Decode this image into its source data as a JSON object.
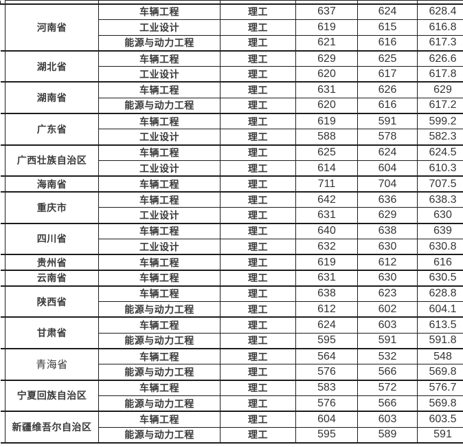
{
  "colors": {
    "province_bg": "#d1d1d1",
    "border": "#1c1c1c",
    "text": "#3a3a3a",
    "background": "#ffffff"
  },
  "table": {
    "groups": [
      {
        "province": "河南省",
        "rows": [
          {
            "major": "车辆工程",
            "category": "理工",
            "s1": "637",
            "s2": "624",
            "s3": "628.4"
          },
          {
            "major": "工业设计",
            "category": "理工",
            "s1": "619",
            "s2": "615",
            "s3": "616.8"
          },
          {
            "major": "能源与动力工程",
            "category": "理工",
            "s1": "621",
            "s2": "616",
            "s3": "617.3"
          }
        ]
      },
      {
        "province": "湖北省",
        "rows": [
          {
            "major": "车辆工程",
            "category": "理工",
            "s1": "629",
            "s2": "625",
            "s3": "626.6"
          },
          {
            "major": "工业设计",
            "category": "理工",
            "s1": "620",
            "s2": "617",
            "s3": "617.8"
          }
        ]
      },
      {
        "province": "湖南省",
        "rows": [
          {
            "major": "车辆工程",
            "category": "理工",
            "s1": "631",
            "s2": "626",
            "s3": "629"
          },
          {
            "major": "能源与动力工程",
            "category": "理工",
            "s1": "620",
            "s2": "616",
            "s3": "617.2"
          }
        ]
      },
      {
        "province": "广东省",
        "rows": [
          {
            "major": "车辆工程",
            "category": "理工",
            "s1": "619",
            "s2": "591",
            "s3": "599.2"
          },
          {
            "major": "工业设计",
            "category": "理工",
            "s1": "588",
            "s2": "578",
            "s3": "582.3"
          }
        ]
      },
      {
        "province": "广西壮族自治区",
        "rows": [
          {
            "major": "车辆工程",
            "category": "理工",
            "s1": "625",
            "s2": "624",
            "s3": "624.5"
          },
          {
            "major": "工业设计",
            "category": "理工",
            "s1": "614",
            "s2": "604",
            "s3": "610.3"
          }
        ]
      },
      {
        "province": "海南省",
        "rows": [
          {
            "major": "车辆工程",
            "category": "理工",
            "s1": "711",
            "s2": "704",
            "s3": "707.5"
          }
        ]
      },
      {
        "province": "重庆市",
        "rows": [
          {
            "major": "车辆工程",
            "category": "理工",
            "s1": "642",
            "s2": "636",
            "s3": "638.3"
          },
          {
            "major": "工业设计",
            "category": "理工",
            "s1": "631",
            "s2": "629",
            "s3": "630"
          }
        ]
      },
      {
        "province": "四川省",
        "rows": [
          {
            "major": "车辆工程",
            "category": "理工",
            "s1": "640",
            "s2": "638",
            "s3": "639"
          },
          {
            "major": "工业设计",
            "category": "理工",
            "s1": "632",
            "s2": "630",
            "s3": "630.8"
          }
        ]
      },
      {
        "province": "贵州省",
        "rows": [
          {
            "major": "车辆工程",
            "category": "理工",
            "s1": "619",
            "s2": "612",
            "s3": "616"
          }
        ]
      },
      {
        "province": "云南省",
        "rows": [
          {
            "major": "车辆工程",
            "category": "理工",
            "s1": "631",
            "s2": "630",
            "s3": "630.5"
          }
        ]
      },
      {
        "province": "陕西省",
        "rows": [
          {
            "major": "车辆工程",
            "category": "理工",
            "s1": "638",
            "s2": "623",
            "s3": "628.8"
          },
          {
            "major": "能源与动力工程",
            "category": "理工",
            "s1": "612",
            "s2": "602",
            "s3": "604.1"
          }
        ]
      },
      {
        "province": "甘肃省",
        "rows": [
          {
            "major": "车辆工程",
            "category": "理工",
            "s1": "624",
            "s2": "603",
            "s3": "613.5"
          },
          {
            "major": "能源与动力工程",
            "category": "理工",
            "s1": "595",
            "s2": "591",
            "s3": "591.8"
          }
        ]
      },
      {
        "province": "青海省",
        "serif": true,
        "rows": [
          {
            "major": "车辆工程",
            "category": "理工",
            "s1": "564",
            "s2": "532",
            "s3": "548"
          },
          {
            "major": "能源与动力工程",
            "category": "理工",
            "s1": "576",
            "s2": "566",
            "s3": "569.8"
          }
        ]
      },
      {
        "province": "宁夏回族自治区",
        "rows": [
          {
            "major": "车辆工程",
            "category": "理工",
            "s1": "583",
            "s2": "572",
            "s3": "576.7"
          },
          {
            "major": "能源与动力工程",
            "category": "理工",
            "s1": "576",
            "s2": "566",
            "s3": "569.8"
          }
        ]
      },
      {
        "province": "新疆维吾尔自治区",
        "rows": [
          {
            "major": "车辆工程",
            "category": "理工",
            "s1": "604",
            "s2": "603",
            "s3": "603.5"
          },
          {
            "major": "能源与动力工程",
            "category": "理工",
            "s1": "595",
            "s2": "589",
            "s3": "591"
          }
        ]
      }
    ]
  }
}
